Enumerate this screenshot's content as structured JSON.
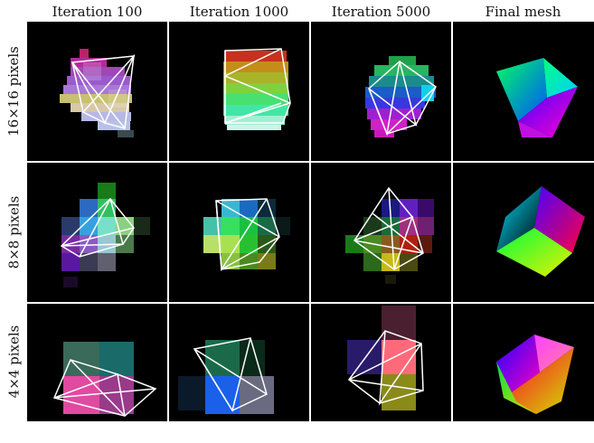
{
  "columns": [
    "Iteration 100",
    "Iteration 1000",
    "Iteration 5000",
    "Final mesh"
  ],
  "rows": [
    "16×16 pixels",
    "8×8 pixels",
    "4×4 pixels"
  ],
  "colors": {
    "panel_bg": "#000000",
    "wire": "#ffffff",
    "figure_bg": "#ffffff"
  }
}
